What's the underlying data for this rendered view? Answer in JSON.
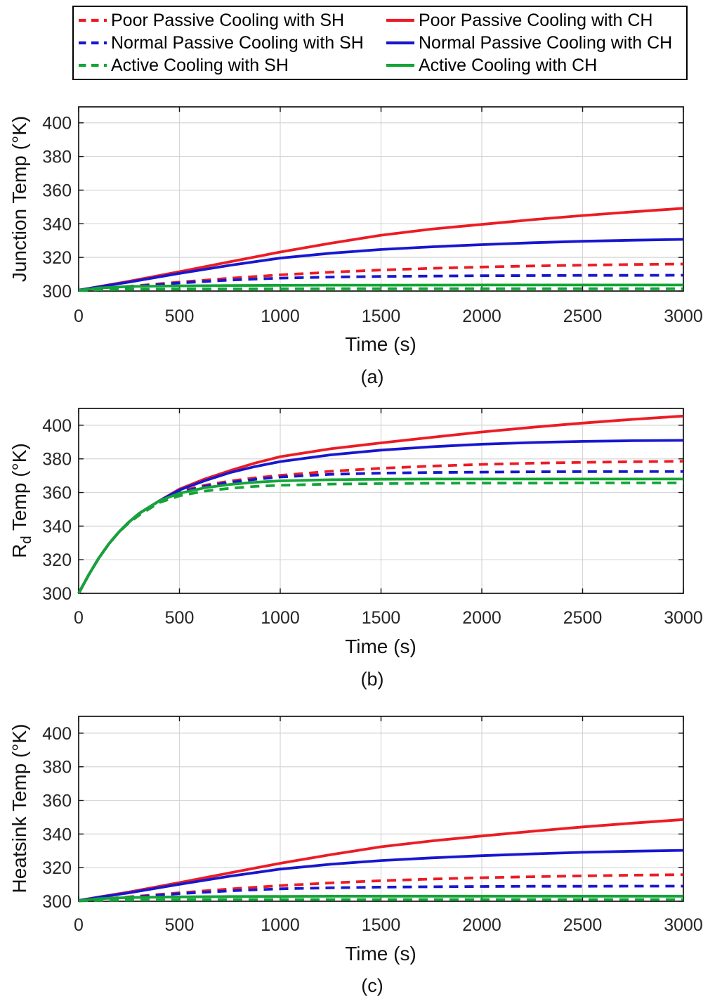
{
  "figure": {
    "background": "#ffffff",
    "colors": {
      "red": "#ec1c24",
      "blue": "#1717d0",
      "green": "#14a437",
      "grid": "#d6d6d6",
      "axis": "#131313",
      "tick_text": "#262626"
    }
  },
  "legend": {
    "items": [
      {
        "label": "Poor Passive Cooling with SH",
        "color_key": "red",
        "dashed": true
      },
      {
        "label": "Poor Passive Cooling with CH",
        "color_key": "red",
        "dashed": false
      },
      {
        "label": "Normal Passive Cooling with SH",
        "color_key": "blue",
        "dashed": true
      },
      {
        "label": "Normal Passive Cooling with CH",
        "color_key": "blue",
        "dashed": false
      },
      {
        "label": "Active Cooling with SH",
        "color_key": "green",
        "dashed": true
      },
      {
        "label": "Active Cooling with CH",
        "color_key": "green",
        "dashed": false
      }
    ]
  },
  "chart_data": [
    {
      "id": "a",
      "type": "line",
      "caption": "(a)",
      "xlabel": "Time (s)",
      "ylabel": {
        "pre": "Junction Temp (°K)",
        "sub": "",
        "post": ""
      },
      "xlim": [
        0,
        3000
      ],
      "ylim": [
        300,
        409.5
      ],
      "xticks": [
        0,
        500,
        1000,
        1500,
        2000,
        2500,
        3000
      ],
      "yticks": [
        300,
        320,
        340,
        360,
        380,
        400
      ],
      "grid": true,
      "x": [
        0,
        100,
        250,
        500,
        750,
        1000,
        1250,
        1500,
        1750,
        2000,
        2250,
        2500,
        2750,
        3000
      ],
      "series": [
        {
          "id": "poor-sh",
          "name": "Poor Passive Cooling with SH",
          "color": "red",
          "dashed": true,
          "values": [
            300.4,
            301.3,
            302.8,
            305.3,
            307.6,
            309.6,
            311.2,
            312.5,
            313.5,
            314.3,
            314.9,
            315.4,
            315.8,
            316.1
          ]
        },
        {
          "id": "poor-ch",
          "name": "Poor Passive Cooling with CH",
          "color": "red",
          "dashed": false,
          "values": [
            300.5,
            302.6,
            305.8,
            311.5,
            317.4,
            323.2,
            328.4,
            333.2,
            336.8,
            339.6,
            342.4,
            344.9,
            347.1,
            349.2
          ]
        },
        {
          "id": "normal-sh",
          "name": "Normal Passive Cooling with SH",
          "color": "blue",
          "dashed": true,
          "values": [
            300.4,
            301.2,
            302.5,
            304.8,
            306.5,
            307.7,
            308.3,
            308.7,
            308.9,
            309.1,
            309.2,
            309.3,
            309.3,
            309.4
          ]
        },
        {
          "id": "normal-ch",
          "name": "Normal Passive Cooling with CH",
          "color": "blue",
          "dashed": false,
          "values": [
            300.5,
            302.5,
            305.3,
            310.5,
            315.3,
            319.6,
            322.5,
            324.7,
            326.3,
            327.6,
            328.7,
            329.6,
            330.2,
            330.7
          ]
        },
        {
          "id": "active-sh",
          "name": "Active Cooling with SH",
          "color": "green",
          "dashed": true,
          "values": [
            300.3,
            300.8,
            301.0,
            301.2,
            301.3,
            301.35,
            301.4,
            301.4,
            301.4,
            301.4,
            301.4,
            301.4,
            301.4,
            301.4
          ]
        },
        {
          "id": "active-ch",
          "name": "Active Cooling with CH",
          "color": "green",
          "dashed": false,
          "values": [
            300.4,
            301.8,
            302.7,
            303.1,
            303.3,
            303.4,
            303.5,
            303.5,
            303.55,
            303.6,
            303.6,
            303.6,
            303.6,
            303.6
          ]
        }
      ]
    },
    {
      "id": "b",
      "type": "line",
      "caption": "(b)",
      "xlabel": "Time (s)",
      "ylabel": {
        "pre": "R",
        "sub": "d",
        "post": " Temp (°K)"
      },
      "xlim": [
        0,
        3000
      ],
      "ylim": [
        300,
        410
      ],
      "xticks": [
        0,
        500,
        1000,
        1500,
        2000,
        2500,
        3000
      ],
      "yticks": [
        300,
        320,
        340,
        360,
        380,
        400
      ],
      "grid": true,
      "x": [
        0,
        50,
        100,
        150,
        200,
        250,
        300,
        400,
        500,
        625,
        750,
        875,
        1000,
        1250,
        1500,
        1750,
        2000,
        2250,
        2500,
        2750,
        3000
      ],
      "series": [
        {
          "id": "poor-sh",
          "name": "Poor Passive Cooling with SH",
          "color": "red",
          "dashed": true,
          "values": [
            300,
            311,
            321,
            329.5,
            336.5,
            342.5,
            347.5,
            355,
            360.5,
            364.3,
            366.8,
            368.7,
            370.2,
            372.6,
            374.4,
            375.7,
            376.7,
            377.4,
            377.9,
            378.3,
            378.6
          ]
        },
        {
          "id": "poor-ch",
          "name": "Poor Passive Cooling with CH",
          "color": "red",
          "dashed": false,
          "values": [
            300,
            311,
            321,
            329.5,
            336.5,
            342.5,
            347.5,
            355,
            362,
            368,
            373,
            377.5,
            381.3,
            386,
            389.5,
            392.8,
            396,
            398.8,
            401.3,
            403.5,
            405.5
          ]
        },
        {
          "id": "normal-sh",
          "name": "Normal Passive Cooling with SH",
          "color": "blue",
          "dashed": true,
          "values": [
            300,
            311,
            321,
            329.5,
            336.5,
            342.5,
            347.5,
            355,
            360,
            363.6,
            366,
            367.8,
            369.2,
            370.8,
            371.5,
            371.9,
            372.1,
            372.3,
            372.4,
            372.45,
            372.5
          ]
        },
        {
          "id": "normal-ch",
          "name": "Normal Passive Cooling with CH",
          "color": "blue",
          "dashed": false,
          "values": [
            300,
            311,
            321,
            329.5,
            336.5,
            342.5,
            347.5,
            355,
            361.5,
            367,
            371.8,
            375.4,
            378.4,
            382.4,
            385.2,
            387.2,
            388.7,
            389.7,
            390.4,
            390.8,
            391
          ]
        },
        {
          "id": "active-sh",
          "name": "Active Cooling with SH",
          "color": "green",
          "dashed": true,
          "values": [
            300,
            311,
            321,
            329.5,
            336.5,
            342,
            346.5,
            354,
            358,
            360.8,
            362.5,
            363.6,
            364.3,
            365,
            365.3,
            365.5,
            365.6,
            365.6,
            365.7,
            365.7,
            365.7
          ]
        },
        {
          "id": "active-ch",
          "name": "Active Cooling with CH",
          "color": "green",
          "dashed": false,
          "values": [
            300,
            311,
            321,
            329.5,
            336.5,
            342.5,
            347.5,
            355,
            359.5,
            362.8,
            364.8,
            366.1,
            366.9,
            367.6,
            367.9,
            368,
            368,
            368,
            368,
            368,
            368
          ]
        }
      ]
    },
    {
      "id": "c",
      "type": "line",
      "caption": "(c)",
      "xlabel": "Time (s)",
      "ylabel": {
        "pre": "Heatsink Temp (°K)",
        "sub": "",
        "post": ""
      },
      "xlim": [
        0,
        3000
      ],
      "ylim": [
        300,
        410
      ],
      "xticks": [
        0,
        500,
        1000,
        1500,
        2000,
        2500,
        3000
      ],
      "yticks": [
        300,
        320,
        340,
        360,
        380,
        400
      ],
      "grid": true,
      "x": [
        0,
        100,
        250,
        500,
        750,
        1000,
        1250,
        1500,
        1750,
        2000,
        2250,
        2500,
        2750,
        3000
      ],
      "series": [
        {
          "id": "poor-sh",
          "name": "Poor Passive Cooling with SH",
          "color": "red",
          "dashed": true,
          "values": [
            300.3,
            301.2,
            302.6,
            305.0,
            307.3,
            309.3,
            310.9,
            312.2,
            313.2,
            314.0,
            314.6,
            315.1,
            315.5,
            315.8
          ]
        },
        {
          "id": "poor-ch",
          "name": "Poor Passive Cooling with CH",
          "color": "red",
          "dashed": false,
          "values": [
            300.4,
            302.5,
            305.5,
            311.1,
            316.9,
            322.6,
            327.7,
            332.4,
            335.9,
            338.8,
            341.6,
            344.2,
            346.5,
            348.6
          ]
        },
        {
          "id": "normal-sh",
          "name": "Normal Passive Cooling with SH",
          "color": "blue",
          "dashed": true,
          "values": [
            300.3,
            301.1,
            302.3,
            304.5,
            306.2,
            307.4,
            308.0,
            308.4,
            308.6,
            308.8,
            308.9,
            308.9,
            309.0,
            309.0
          ]
        },
        {
          "id": "normal-ch",
          "name": "Normal Passive Cooling with CH",
          "color": "blue",
          "dashed": false,
          "values": [
            300.4,
            302.4,
            305.0,
            310.1,
            314.9,
            319.1,
            322.0,
            324.2,
            325.8,
            327.1,
            328.2,
            329.1,
            329.8,
            330.3
          ]
        },
        {
          "id": "active-sh",
          "name": "Active Cooling with SH",
          "color": "green",
          "dashed": true,
          "values": [
            300.2,
            300.5,
            300.7,
            300.85,
            300.95,
            301.0,
            301.0,
            301.0,
            301.0,
            301.0,
            301.0,
            301.0,
            301.0,
            301.0
          ]
        },
        {
          "id": "active-ch",
          "name": "Active Cooling with CH",
          "color": "green",
          "dashed": false,
          "values": [
            300.3,
            301.5,
            302.2,
            302.6,
            302.8,
            302.9,
            302.95,
            303.0,
            303.0,
            303.0,
            303.0,
            303.0,
            303.0,
            303.0
          ]
        }
      ]
    }
  ]
}
